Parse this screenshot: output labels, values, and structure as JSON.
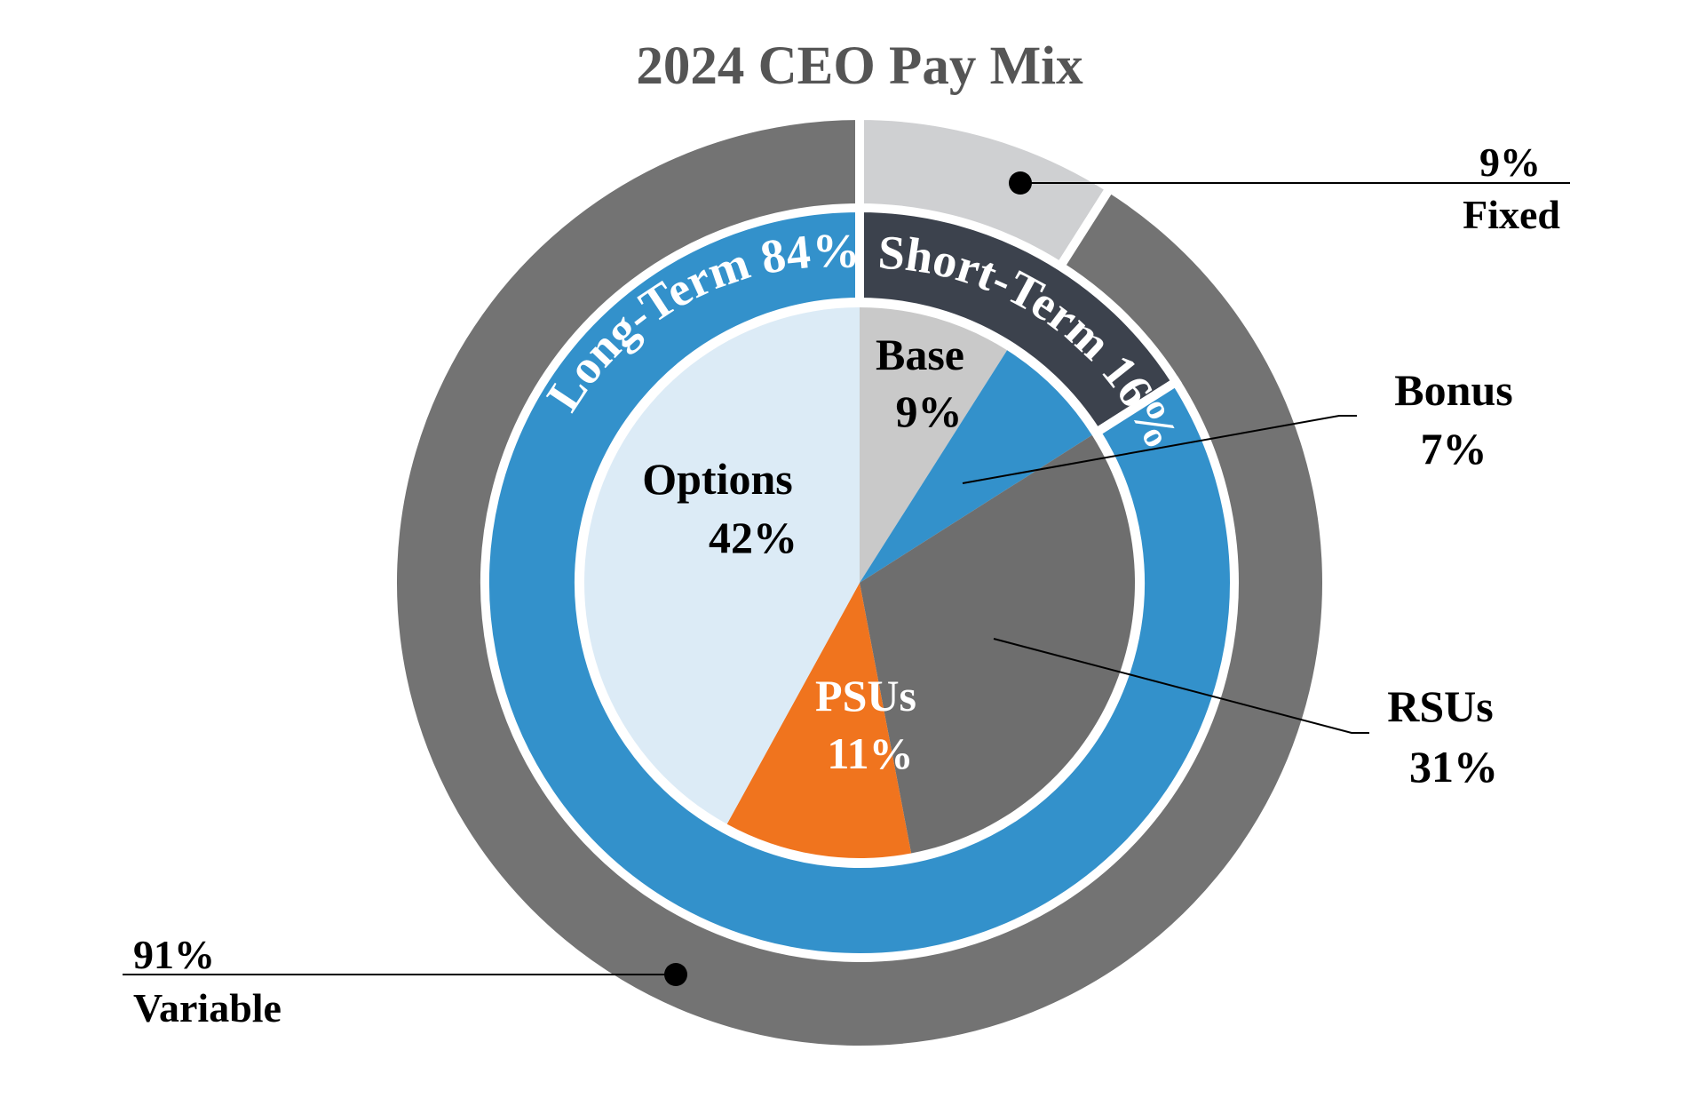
{
  "chart_data": {
    "type": "pie",
    "title": "2024 CEO Pay Mix",
    "rings": {
      "outer": [
        {
          "name": "Fixed",
          "value": 9,
          "label": "9%",
          "color": "#cfd0d2"
        },
        {
          "name": "Variable",
          "value": 91,
          "label": "91%",
          "color": "#737373"
        }
      ],
      "middle": [
        {
          "name": "Short-Term",
          "value": 16,
          "label": "Short-Term 16%",
          "color": "#3c424d"
        },
        {
          "name": "Long-Term",
          "value": 84,
          "label": "Long-Term 84%",
          "color": "#3391cb"
        }
      ],
      "inner": [
        {
          "name": "Base",
          "value": 9,
          "label": "9%",
          "color": "#c9c9c9"
        },
        {
          "name": "Bonus",
          "value": 7,
          "label": "7%",
          "color": "#3391cb"
        },
        {
          "name": "RSUs",
          "value": 31,
          "label": "31%",
          "color": "#6e6e6e"
        },
        {
          "name": "PSUs",
          "value": 11,
          "label": "11%",
          "color": "#f0741e"
        },
        {
          "name": "Options",
          "value": 42,
          "label": "42%",
          "color": "#dcebf6"
        }
      ]
    },
    "callouts": {
      "fixed": {
        "value": "9%",
        "name": "Fixed"
      },
      "variable": {
        "value": "91%",
        "name": "Variable"
      },
      "bonus": {
        "name": "Bonus",
        "value": "7%"
      },
      "rsus": {
        "name": "RSUs",
        "value": "31%"
      }
    }
  }
}
